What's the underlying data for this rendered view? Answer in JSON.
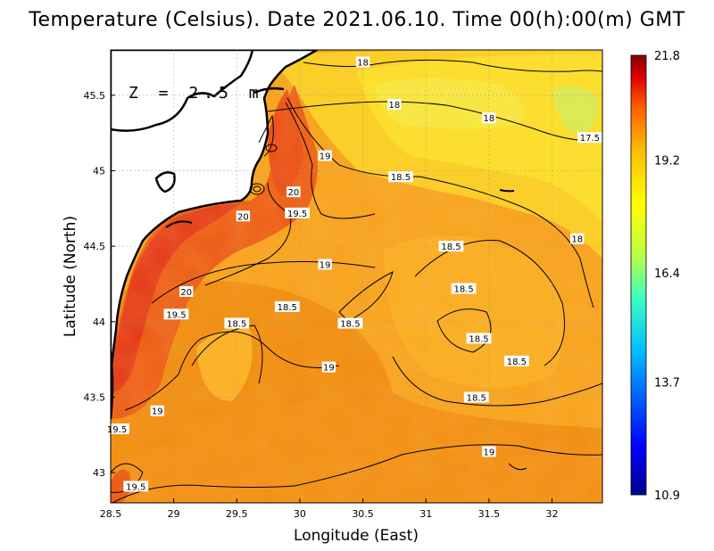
{
  "title": "Temperature (Celsius). Date 2021.06.10. Time 00(h):00(m) GMT",
  "depth_label": "Z = 2.5 m",
  "colors": {
    "land": "#ffffff",
    "coast": "#000000",
    "contour": "#000000",
    "colormap": [
      "#00008f",
      "#0000ff",
      "#00bfff",
      "#40ffbf",
      "#bfff40",
      "#ffff00",
      "#ffbf00",
      "#ff6000",
      "#e00000",
      "#800000"
    ]
  },
  "chart_data": {
    "type": "heatmap",
    "xlabel": "Longitude (East)",
    "ylabel": "Latitude (North)",
    "xlim": [
      28.5,
      32.4
    ],
    "ylim": [
      42.8,
      45.8
    ],
    "x_ticks": [
      "28.5",
      "29",
      "29.5",
      "30",
      "30.5",
      "31",
      "31.5",
      "32"
    ],
    "y_ticks": [
      "43",
      "43.5",
      "44",
      "44.5",
      "45",
      "45.5"
    ],
    "grid": true,
    "colorbar": {
      "min": 10.9,
      "max": 21.8,
      "ticks": [
        "10.9",
        "13.7",
        "16.4",
        "19.2",
        "21.8"
      ]
    },
    "contour_labels": [
      {
        "text": "18",
        "lon": 30.5,
        "lat": 45.72
      },
      {
        "text": "18",
        "lon": 30.75,
        "lat": 45.44
      },
      {
        "text": "18",
        "lon": 31.5,
        "lat": 45.35
      },
      {
        "text": "17.5",
        "lon": 32.3,
        "lat": 45.22
      },
      {
        "text": "19",
        "lon": 30.2,
        "lat": 45.1
      },
      {
        "text": "18.5",
        "lon": 30.8,
        "lat": 44.96
      },
      {
        "text": "20",
        "lon": 29.95,
        "lat": 44.86
      },
      {
        "text": "19.5",
        "lon": 29.98,
        "lat": 44.72
      },
      {
        "text": "20",
        "lon": 29.55,
        "lat": 44.7
      },
      {
        "text": "18",
        "lon": 32.2,
        "lat": 44.55
      },
      {
        "text": "18.5",
        "lon": 31.2,
        "lat": 44.5
      },
      {
        "text": "19",
        "lon": 30.2,
        "lat": 44.38
      },
      {
        "text": "20",
        "lon": 29.1,
        "lat": 44.2
      },
      {
        "text": "18.5",
        "lon": 31.3,
        "lat": 44.22
      },
      {
        "text": "18.5",
        "lon": 29.9,
        "lat": 44.1
      },
      {
        "text": "19.5",
        "lon": 29.02,
        "lat": 44.05
      },
      {
        "text": "18.5",
        "lon": 29.5,
        "lat": 43.99
      },
      {
        "text": "18.5",
        "lon": 30.4,
        "lat": 43.99
      },
      {
        "text": "18.5",
        "lon": 31.42,
        "lat": 43.89
      },
      {
        "text": "18.5",
        "lon": 31.72,
        "lat": 43.74
      },
      {
        "text": "19",
        "lon": 30.23,
        "lat": 43.7
      },
      {
        "text": "18.5",
        "lon": 31.4,
        "lat": 43.5
      },
      {
        "text": "19",
        "lon": 28.87,
        "lat": 43.41
      },
      {
        "text": "19.5",
        "lon": 28.55,
        "lat": 43.29
      },
      {
        "text": "19",
        "lon": 31.5,
        "lat": 43.14
      },
      {
        "text": "19.5",
        "lon": 28.7,
        "lat": 42.91
      }
    ]
  }
}
